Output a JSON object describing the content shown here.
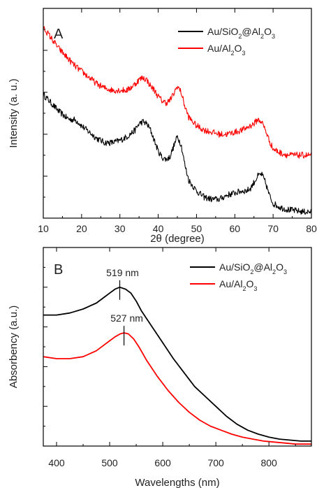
{
  "chart_data": [
    {
      "type": "line",
      "panel_label": "A",
      "xlabel": "2θ (degree)",
      "ylabel": "Intensity (a. u.)",
      "xlim": [
        10,
        80
      ],
      "ylim": [
        0,
        1
      ],
      "y_ticklabels_shown": false,
      "x_ticks": [
        10,
        20,
        30,
        40,
        50,
        60,
        70,
        80
      ],
      "legend_position": "top-right",
      "series": [
        {
          "name": "Au/SiO2@Al2O3",
          "color": "#000000",
          "noisy": true,
          "x": [
            10,
            12,
            14,
            16,
            17,
            18,
            19,
            20,
            22,
            24,
            26,
            28,
            30,
            32,
            34,
            35,
            36,
            37,
            38,
            39,
            40,
            41,
            42,
            43,
            44,
            45,
            46,
            47,
            48,
            50,
            52,
            54,
            56,
            58,
            60,
            62,
            63,
            64,
            65,
            66,
            67,
            68,
            69,
            70,
            72,
            74,
            76,
            78,
            80
          ],
          "y": [
            0.59,
            0.55,
            0.51,
            0.48,
            0.47,
            0.47,
            0.46,
            0.44,
            0.41,
            0.38,
            0.36,
            0.36,
            0.37,
            0.39,
            0.42,
            0.45,
            0.46,
            0.45,
            0.42,
            0.37,
            0.32,
            0.29,
            0.28,
            0.29,
            0.34,
            0.39,
            0.35,
            0.25,
            0.18,
            0.13,
            0.1,
            0.09,
            0.09,
            0.11,
            0.12,
            0.13,
            0.13,
            0.14,
            0.17,
            0.2,
            0.21,
            0.17,
            0.11,
            0.07,
            0.05,
            0.04,
            0.035,
            0.03,
            0.03
          ]
        },
        {
          "name": "Au/Al2O3",
          "color": "#ff0000",
          "noisy": true,
          "x": [
            10,
            12,
            14,
            16,
            18,
            20,
            22,
            24,
            26,
            28,
            30,
            32,
            34,
            35,
            36,
            37,
            38,
            39,
            40,
            41,
            42,
            43,
            44,
            45,
            46,
            47,
            48,
            50,
            52,
            54,
            56,
            58,
            60,
            62,
            64,
            65,
            66,
            67,
            68,
            69,
            70,
            72,
            74,
            76,
            78,
            80
          ],
          "y": [
            0.91,
            0.86,
            0.81,
            0.77,
            0.73,
            0.7,
            0.67,
            0.64,
            0.62,
            0.61,
            0.61,
            0.61,
            0.64,
            0.66,
            0.67,
            0.66,
            0.63,
            0.61,
            0.58,
            0.56,
            0.55,
            0.56,
            0.59,
            0.63,
            0.6,
            0.53,
            0.48,
            0.44,
            0.42,
            0.41,
            0.4,
            0.4,
            0.41,
            0.42,
            0.44,
            0.45,
            0.47,
            0.46,
            0.42,
            0.37,
            0.33,
            0.31,
            0.3,
            0.3,
            0.3,
            0.3
          ]
        }
      ]
    },
    {
      "type": "line",
      "panel_label": "B",
      "xlabel": "Wavelengths (nm)",
      "ylabel": "Absorbency (a.u.)",
      "xlim": [
        375,
        880
      ],
      "ylim": [
        0,
        1
      ],
      "y_ticklabels_shown": false,
      "x_ticks": [
        400,
        500,
        600,
        700,
        800
      ],
      "legend_position": "top-right",
      "annotations": [
        {
          "text": "519 nm",
          "x": 519,
          "y": 0.8
        },
        {
          "text": "527 nm",
          "x": 527,
          "y": 0.57
        }
      ],
      "series": [
        {
          "name": "Au/SiO2@Al2O3",
          "color": "#000000",
          "x": [
            375,
            400,
            425,
            450,
            475,
            490,
            500,
            510,
            519,
            530,
            540,
            550,
            560,
            580,
            600,
            620,
            640,
            660,
            680,
            700,
            720,
            740,
            760,
            780,
            800,
            820,
            840,
            860,
            880
          ],
          "y": [
            0.66,
            0.66,
            0.67,
            0.69,
            0.72,
            0.75,
            0.77,
            0.79,
            0.8,
            0.79,
            0.77,
            0.73,
            0.68,
            0.6,
            0.52,
            0.44,
            0.37,
            0.3,
            0.25,
            0.2,
            0.15,
            0.11,
            0.08,
            0.06,
            0.045,
            0.035,
            0.03,
            0.025,
            0.025
          ]
        },
        {
          "name": "Au/Al2O3",
          "color": "#ff0000",
          "x": [
            375,
            400,
            425,
            450,
            475,
            490,
            500,
            510,
            520,
            527,
            535,
            545,
            555,
            570,
            590,
            610,
            630,
            650,
            670,
            690,
            710,
            730,
            750,
            770,
            790,
            810,
            830,
            850,
            880
          ],
          "y": [
            0.45,
            0.44,
            0.44,
            0.45,
            0.48,
            0.51,
            0.53,
            0.55,
            0.565,
            0.57,
            0.565,
            0.54,
            0.5,
            0.43,
            0.35,
            0.28,
            0.22,
            0.17,
            0.13,
            0.1,
            0.08,
            0.06,
            0.045,
            0.035,
            0.025,
            0.02,
            0.015,
            0.01,
            0.01
          ]
        }
      ]
    }
  ]
}
